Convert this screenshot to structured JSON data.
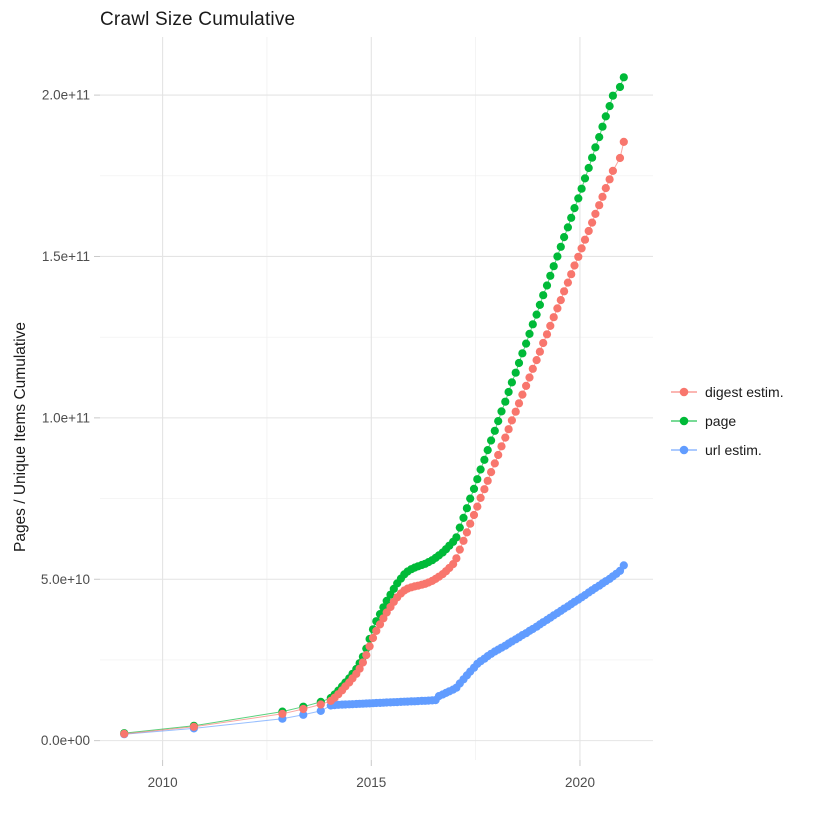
{
  "page": {
    "background": "#ffffff"
  },
  "chart_data": {
    "type": "scatter",
    "title": "Crawl Size Cumulative",
    "ylabel": "Pages / Unique Items Cumulative",
    "xlabel": "",
    "grid": true,
    "legend_position": "right",
    "value_unit": "1e9",
    "xlim": [
      2008.5,
      2021.75
    ],
    "ylim_e9": [
      -6,
      218
    ],
    "x_ticks": [
      {
        "v": 2010,
        "label": "2010"
      },
      {
        "v": 2015,
        "label": "2015"
      },
      {
        "v": 2020,
        "label": "2020"
      }
    ],
    "x_minor": [
      2012.5,
      2017.5
    ],
    "y_ticks": [
      {
        "v": 0,
        "label": "0.0e+00"
      },
      {
        "v": 50,
        "label": "5.0e+10"
      },
      {
        "v": 100,
        "label": "1.0e+11"
      },
      {
        "v": 150,
        "label": "1.5e+11"
      },
      {
        "v": 200,
        "label": "2.0e+11"
      }
    ],
    "y_minor": [
      25,
      75,
      125,
      175
    ],
    "series": [
      {
        "name": "digest estim.",
        "color": "#F8766D",
        "points": [
          [
            2009.08,
            2.1
          ],
          [
            2010.75,
            4.3
          ],
          [
            2012.87,
            8.3
          ],
          [
            2013.37,
            9.8
          ],
          [
            2013.79,
            11.2
          ],
          [
            2014.03,
            12.3
          ],
          [
            2014.12,
            13.3
          ],
          [
            2014.21,
            14.4
          ],
          [
            2014.3,
            15.6
          ],
          [
            2014.38,
            16.8
          ],
          [
            2014.47,
            18.0
          ],
          [
            2014.55,
            19.3
          ],
          [
            2014.64,
            20.7
          ],
          [
            2014.72,
            22.3
          ],
          [
            2014.8,
            24.2
          ],
          [
            2014.88,
            26.5
          ],
          [
            2014.96,
            29.2
          ],
          [
            2015.04,
            31.8
          ],
          [
            2015.12,
            34.0
          ],
          [
            2015.21,
            36.0
          ],
          [
            2015.29,
            37.9
          ],
          [
            2015.37,
            39.7
          ],
          [
            2015.46,
            41.4
          ],
          [
            2015.54,
            43.0
          ],
          [
            2015.62,
            44.4
          ],
          [
            2015.71,
            45.6
          ],
          [
            2015.79,
            46.5
          ],
          [
            2015.87,
            47.1
          ],
          [
            2015.96,
            47.5
          ],
          [
            2016.04,
            47.8
          ],
          [
            2016.12,
            48.0
          ],
          [
            2016.21,
            48.3
          ],
          [
            2016.29,
            48.6
          ],
          [
            2016.37,
            49.0
          ],
          [
            2016.46,
            49.5
          ],
          [
            2016.54,
            50.1
          ],
          [
            2016.62,
            50.8
          ],
          [
            2016.71,
            51.6
          ],
          [
            2016.79,
            52.5
          ],
          [
            2016.87,
            53.5
          ],
          [
            2016.96,
            54.7
          ],
          [
            2017.04,
            56.5
          ],
          [
            2017.12,
            59.2
          ],
          [
            2017.21,
            61.9
          ],
          [
            2017.29,
            64.5
          ],
          [
            2017.37,
            67.2
          ],
          [
            2017.46,
            69.9
          ],
          [
            2017.54,
            72.5
          ],
          [
            2017.62,
            75.2
          ],
          [
            2017.71,
            77.9
          ],
          [
            2017.79,
            80.5
          ],
          [
            2017.87,
            83.2
          ],
          [
            2017.96,
            85.9
          ],
          [
            2018.04,
            88.5
          ],
          [
            2018.12,
            91.2
          ],
          [
            2018.21,
            93.9
          ],
          [
            2018.29,
            96.5
          ],
          [
            2018.37,
            99.2
          ],
          [
            2018.46,
            101.9
          ],
          [
            2018.54,
            104.5
          ],
          [
            2018.62,
            107.2
          ],
          [
            2018.71,
            109.9
          ],
          [
            2018.79,
            112.5
          ],
          [
            2018.87,
            115.2
          ],
          [
            2018.96,
            117.9
          ],
          [
            2019.04,
            120.5
          ],
          [
            2019.12,
            123.2
          ],
          [
            2019.21,
            125.9
          ],
          [
            2019.29,
            128.5
          ],
          [
            2019.37,
            131.2
          ],
          [
            2019.46,
            133.9
          ],
          [
            2019.54,
            136.5
          ],
          [
            2019.62,
            139.2
          ],
          [
            2019.71,
            141.9
          ],
          [
            2019.79,
            144.5
          ],
          [
            2019.87,
            147.2
          ],
          [
            2019.96,
            149.9
          ],
          [
            2020.04,
            152.5
          ],
          [
            2020.12,
            155.2
          ],
          [
            2020.21,
            157.9
          ],
          [
            2020.29,
            160.5
          ],
          [
            2020.37,
            163.2
          ],
          [
            2020.46,
            165.9
          ],
          [
            2020.54,
            168.5
          ],
          [
            2020.62,
            171.2
          ],
          [
            2020.71,
            173.9
          ],
          [
            2020.79,
            176.5
          ],
          [
            2020.96,
            180.5
          ],
          [
            2021.05,
            185.5
          ]
        ]
      },
      {
        "name": "page",
        "color": "#00BA38",
        "points": [
          [
            2009.08,
            2.3
          ],
          [
            2010.75,
            4.6
          ],
          [
            2012.87,
            9.0
          ],
          [
            2013.37,
            10.5
          ],
          [
            2013.79,
            12.0
          ],
          [
            2014.03,
            13.2
          ],
          [
            2014.12,
            14.3
          ],
          [
            2014.21,
            15.5
          ],
          [
            2014.3,
            16.8
          ],
          [
            2014.38,
            18.0
          ],
          [
            2014.47,
            19.3
          ],
          [
            2014.55,
            20.7
          ],
          [
            2014.64,
            22.2
          ],
          [
            2014.72,
            24.0
          ],
          [
            2014.8,
            26.0
          ],
          [
            2014.88,
            28.5
          ],
          [
            2014.96,
            31.5
          ],
          [
            2015.04,
            34.5
          ],
          [
            2015.12,
            37.0
          ],
          [
            2015.21,
            39.2
          ],
          [
            2015.29,
            41.3
          ],
          [
            2015.37,
            43.3
          ],
          [
            2015.46,
            45.2
          ],
          [
            2015.54,
            47.0
          ],
          [
            2015.62,
            48.7
          ],
          [
            2015.71,
            50.2
          ],
          [
            2015.79,
            51.5
          ],
          [
            2015.87,
            52.4
          ],
          [
            2015.96,
            53.1
          ],
          [
            2016.04,
            53.6
          ],
          [
            2016.12,
            54.0
          ],
          [
            2016.21,
            54.4
          ],
          [
            2016.29,
            54.8
          ],
          [
            2016.37,
            55.3
          ],
          [
            2016.46,
            55.9
          ],
          [
            2016.54,
            56.6
          ],
          [
            2016.62,
            57.4
          ],
          [
            2016.71,
            58.3
          ],
          [
            2016.79,
            59.3
          ],
          [
            2016.87,
            60.4
          ],
          [
            2016.96,
            61.6
          ],
          [
            2017.04,
            63.0
          ],
          [
            2017.12,
            66.0
          ],
          [
            2017.21,
            69.0
          ],
          [
            2017.29,
            72.0
          ],
          [
            2017.37,
            75.0
          ],
          [
            2017.46,
            78.0
          ],
          [
            2017.54,
            81.0
          ],
          [
            2017.62,
            84.0
          ],
          [
            2017.71,
            87.0
          ],
          [
            2017.79,
            90.0
          ],
          [
            2017.87,
            93.0
          ],
          [
            2017.96,
            96.0
          ],
          [
            2018.04,
            99.0
          ],
          [
            2018.12,
            102
          ],
          [
            2018.21,
            105
          ],
          [
            2018.29,
            108
          ],
          [
            2018.37,
            111
          ],
          [
            2018.46,
            114
          ],
          [
            2018.54,
            117
          ],
          [
            2018.62,
            120
          ],
          [
            2018.71,
            123
          ],
          [
            2018.79,
            126
          ],
          [
            2018.87,
            129
          ],
          [
            2018.96,
            132
          ],
          [
            2019.04,
            135
          ],
          [
            2019.12,
            138
          ],
          [
            2019.21,
            141
          ],
          [
            2019.29,
            144
          ],
          [
            2019.37,
            147
          ],
          [
            2019.46,
            150
          ],
          [
            2019.54,
            153
          ],
          [
            2019.62,
            156
          ],
          [
            2019.71,
            159
          ],
          [
            2019.79,
            162
          ],
          [
            2019.87,
            165
          ],
          [
            2019.96,
            168
          ],
          [
            2020.04,
            171
          ],
          [
            2020.12,
            174.2
          ],
          [
            2020.21,
            177.4
          ],
          [
            2020.29,
            180.6
          ],
          [
            2020.37,
            183.8
          ],
          [
            2020.46,
            187
          ],
          [
            2020.54,
            190.2
          ],
          [
            2020.62,
            193.4
          ],
          [
            2020.71,
            196.6
          ],
          [
            2020.79,
            199.8
          ],
          [
            2020.96,
            202.5
          ],
          [
            2021.05,
            205.5
          ]
        ]
      },
      {
        "name": "url estim.",
        "color": "#619CFF",
        "points": [
          [
            2009.08,
            2.0
          ],
          [
            2010.75,
            3.8
          ],
          [
            2012.87,
            6.8
          ],
          [
            2013.37,
            8.0
          ],
          [
            2013.79,
            9.2
          ],
          [
            2014.03,
            10.9
          ],
          [
            2014.12,
            11.0
          ],
          [
            2014.21,
            11.1
          ],
          [
            2014.3,
            11.15
          ],
          [
            2014.38,
            11.2
          ],
          [
            2014.47,
            11.25
          ],
          [
            2014.55,
            11.3
          ],
          [
            2014.64,
            11.35
          ],
          [
            2014.72,
            11.4
          ],
          [
            2014.8,
            11.45
          ],
          [
            2014.88,
            11.5
          ],
          [
            2014.96,
            11.55
          ],
          [
            2015.04,
            11.6
          ],
          [
            2015.12,
            11.65
          ],
          [
            2015.21,
            11.7
          ],
          [
            2015.29,
            11.75
          ],
          [
            2015.37,
            11.8
          ],
          [
            2015.46,
            11.85
          ],
          [
            2015.54,
            11.9
          ],
          [
            2015.62,
            11.95
          ],
          [
            2015.71,
            12.0
          ],
          [
            2015.79,
            12.05
          ],
          [
            2015.87,
            12.1
          ],
          [
            2015.96,
            12.15
          ],
          [
            2016.04,
            12.2
          ],
          [
            2016.12,
            12.25
          ],
          [
            2016.21,
            12.3
          ],
          [
            2016.29,
            12.35
          ],
          [
            2016.37,
            12.4
          ],
          [
            2016.46,
            12.45
          ],
          [
            2016.54,
            12.55
          ],
          [
            2016.62,
            13.8
          ],
          [
            2016.71,
            14.3
          ],
          [
            2016.79,
            14.8
          ],
          [
            2016.87,
            15.3
          ],
          [
            2016.96,
            15.8
          ],
          [
            2017.04,
            16.4
          ],
          [
            2017.12,
            17.7
          ],
          [
            2017.21,
            19.0
          ],
          [
            2017.29,
            20.2
          ],
          [
            2017.37,
            21.4
          ],
          [
            2017.46,
            22.6
          ],
          [
            2017.54,
            23.8
          ],
          [
            2017.62,
            24.6
          ],
          [
            2017.71,
            25.4
          ],
          [
            2017.79,
            26.2
          ],
          [
            2017.87,
            26.9
          ],
          [
            2017.96,
            27.6
          ],
          [
            2018.04,
            28.2
          ],
          [
            2018.12,
            28.8
          ],
          [
            2018.21,
            29.4
          ],
          [
            2018.29,
            30.1
          ],
          [
            2018.37,
            30.7
          ],
          [
            2018.46,
            31.4
          ],
          [
            2018.54,
            32.0
          ],
          [
            2018.62,
            32.7
          ],
          [
            2018.71,
            33.3
          ],
          [
            2018.79,
            34.0
          ],
          [
            2018.87,
            34.6
          ],
          [
            2018.96,
            35.3
          ],
          [
            2019.04,
            36.0
          ],
          [
            2019.12,
            36.7
          ],
          [
            2019.21,
            37.4
          ],
          [
            2019.29,
            38.1
          ],
          [
            2019.37,
            38.8
          ],
          [
            2019.46,
            39.5
          ],
          [
            2019.54,
            40.2
          ],
          [
            2019.62,
            40.9
          ],
          [
            2019.71,
            41.6
          ],
          [
            2019.79,
            42.3
          ],
          [
            2019.87,
            43.0
          ],
          [
            2019.96,
            43.7
          ],
          [
            2020.04,
            44.4
          ],
          [
            2020.12,
            45.1
          ],
          [
            2020.21,
            45.9
          ],
          [
            2020.29,
            46.6
          ],
          [
            2020.37,
            47.3
          ],
          [
            2020.46,
            48.0
          ],
          [
            2020.54,
            48.7
          ],
          [
            2020.62,
            49.4
          ],
          [
            2020.71,
            50.1
          ],
          [
            2020.79,
            50.9
          ],
          [
            2020.87,
            51.7
          ],
          [
            2020.96,
            52.6
          ],
          [
            2021.05,
            54.3
          ]
        ]
      }
    ]
  }
}
